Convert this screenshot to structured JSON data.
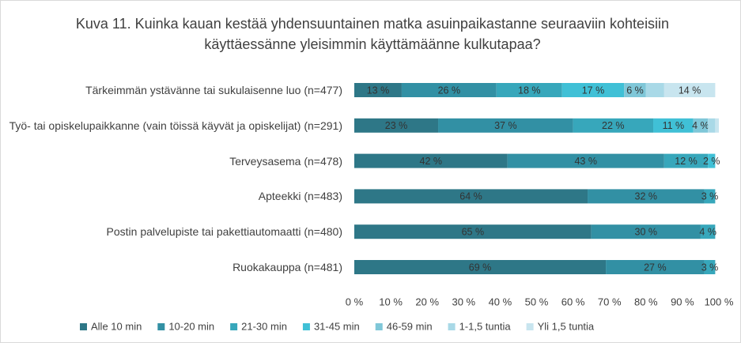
{
  "chart_data": {
    "type": "stacked_barh",
    "title": "Kuva 11. Kuinka kauan kestää yhdensuuntainen matka asuinpaikastanne seuraaviin kohteisiin käyttäessänne yleisimmin käyttämäänne kulkutapaa?",
    "categories": [
      "Tärkeimmän ystävänne tai sukulaisenne luo (n=477)",
      "Työ- tai opiskelupaikkanne (vain töissä käyvät ja opiskelijat) (n=291)",
      "Terveysasema (n=478)",
      "Apteekki (n=483)",
      "Postin palvelupiste tai pakettiautomaatti (n=480)",
      "Ruokakauppa (n=481)"
    ],
    "series": [
      {
        "name": "Alle 10 min",
        "color": "#2e7787",
        "values": [
          13,
          23,
          42,
          64,
          65,
          69
        ],
        "value_labels": [
          "13 %",
          "23 %",
          "42 %",
          "64 %",
          "65 %",
          "69 %"
        ]
      },
      {
        "name": "10-20 min",
        "color": "#3290a4",
        "values": [
          26,
          37,
          43,
          32,
          30,
          27
        ],
        "value_labels": [
          "26 %",
          "37 %",
          "43 %",
          "32 %",
          "30 %",
          "27 %"
        ]
      },
      {
        "name": "21-30 min",
        "color": "#37a7bb",
        "values": [
          18,
          22,
          12,
          3,
          4,
          3
        ],
        "value_labels": [
          "18 %",
          "22 %",
          "12 %",
          "3 %",
          "4 %",
          "3 %"
        ]
      },
      {
        "name": "31-45 min",
        "color": "#40c0d6",
        "values": [
          17,
          11,
          2,
          null,
          null,
          null
        ],
        "value_labels": [
          "17 %",
          "11 %",
          "2 %",
          null,
          null,
          null
        ]
      },
      {
        "name": "46-59 min",
        "color": "#7fc7d8",
        "values": [
          6,
          4,
          null,
          null,
          null,
          null
        ],
        "value_labels": [
          "6 %",
          "4 %",
          null,
          null,
          null,
          null
        ]
      },
      {
        "name": "1-1,5 tuntia",
        "color": "#a9d9e7",
        "values": [
          5,
          2,
          null,
          null,
          null,
          null
        ],
        "value_labels": [
          null,
          null,
          null,
          null,
          null,
          null
        ]
      },
      {
        "name": "Yli 1,5 tuntia",
        "color": "#c8e5ef",
        "values": [
          14,
          1,
          null,
          null,
          null,
          null
        ],
        "value_labels": [
          "14 %",
          null,
          null,
          null,
          null,
          null
        ]
      }
    ],
    "xlim": [
      0,
      100
    ],
    "xticks": [
      {
        "value": 0,
        "label": "0 %"
      },
      {
        "value": 10,
        "label": "10 %"
      },
      {
        "value": 20,
        "label": "20 %"
      },
      {
        "value": 30,
        "label": "30 %"
      },
      {
        "value": 40,
        "label": "40 %"
      },
      {
        "value": 50,
        "label": "50 %"
      },
      {
        "value": 60,
        "label": "60 %"
      },
      {
        "value": 70,
        "label": "70 %"
      },
      {
        "value": 80,
        "label": "80 %"
      },
      {
        "value": 90,
        "label": "90 %"
      },
      {
        "value": 100,
        "label": "100 %"
      }
    ],
    "grid": false,
    "legend": "bottom"
  }
}
